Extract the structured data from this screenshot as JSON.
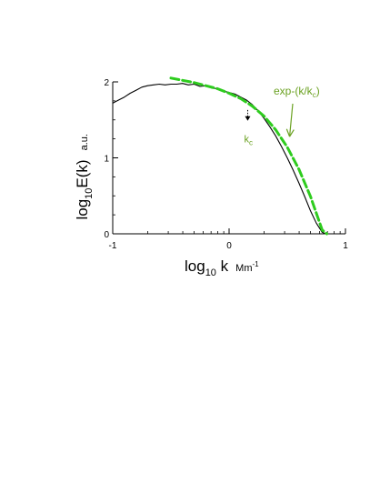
{
  "chart_data": {
    "type": "line",
    "title": "",
    "xlabel": {
      "main": "log",
      "sub": "10",
      "var": " k",
      "unit_main": "Mm",
      "unit_sup": "-1"
    },
    "ylabel": {
      "main": "log",
      "sub": "10",
      "var": "E(k)",
      "unit": "a.u."
    },
    "xlim": [
      -1,
      1
    ],
    "ylim": [
      0,
      2
    ],
    "xticks": [
      -1,
      0,
      1
    ],
    "xtick_labels": [
      "-1",
      "0",
      "1"
    ],
    "yticks": [
      0,
      1,
      2
    ],
    "ytick_labels": [
      "0",
      "1",
      "2"
    ],
    "x_minor_log_ticks": true,
    "grid": false,
    "series": [
      {
        "style": "solid",
        "color": "#000000",
        "x": [
          -1.0,
          -0.95,
          -0.9,
          -0.85,
          -0.8,
          -0.75,
          -0.7,
          -0.65,
          -0.6,
          -0.55,
          -0.5,
          -0.45,
          -0.4,
          -0.35,
          -0.3,
          -0.25,
          -0.2,
          -0.15,
          -0.1,
          -0.05,
          0.0,
          0.05,
          0.1,
          0.15,
          0.2,
          0.25,
          0.3,
          0.35,
          0.4,
          0.45,
          0.5,
          0.55,
          0.6,
          0.65,
          0.7,
          0.75,
          0.8,
          0.83
        ],
        "y": [
          1.72,
          1.76,
          1.8,
          1.85,
          1.89,
          1.93,
          1.95,
          1.96,
          1.97,
          1.96,
          1.97,
          1.97,
          1.98,
          1.96,
          1.97,
          1.94,
          1.95,
          1.92,
          1.91,
          1.88,
          1.86,
          1.84,
          1.8,
          1.76,
          1.7,
          1.62,
          1.52,
          1.41,
          1.29,
          1.15,
          1.0,
          0.84,
          0.67,
          0.49,
          0.3,
          0.14,
          0.02,
          0.0
        ]
      },
      {
        "style": "dashed",
        "color": "#2ecc1e",
        "x": [
          -0.5,
          -0.4,
          -0.3,
          -0.2,
          -0.1,
          0.0,
          0.1,
          0.2,
          0.3,
          0.4,
          0.5,
          0.6,
          0.7,
          0.8,
          0.84
        ],
        "y": [
          2.05,
          2.02,
          1.99,
          1.95,
          1.91,
          1.85,
          1.78,
          1.68,
          1.55,
          1.37,
          1.14,
          0.85,
          0.49,
          0.05,
          0.0
        ]
      }
    ],
    "annotations": [
      {
        "text_main": "k",
        "text_sub": "c",
        "color": "#6aa121",
        "x": 0.16,
        "y": 1.35,
        "arrow": "dotted-down",
        "arrow_from_y": 1.63,
        "arrow_to_y": 1.5
      },
      {
        "text_main": "exp-(k/k",
        "text_sub": "c",
        "text_end": ")",
        "color": "#6aa121",
        "x": 0.85,
        "y": 1.95,
        "arrow_to_x": 0.52,
        "arrow_to_y": 1.28
      }
    ]
  }
}
